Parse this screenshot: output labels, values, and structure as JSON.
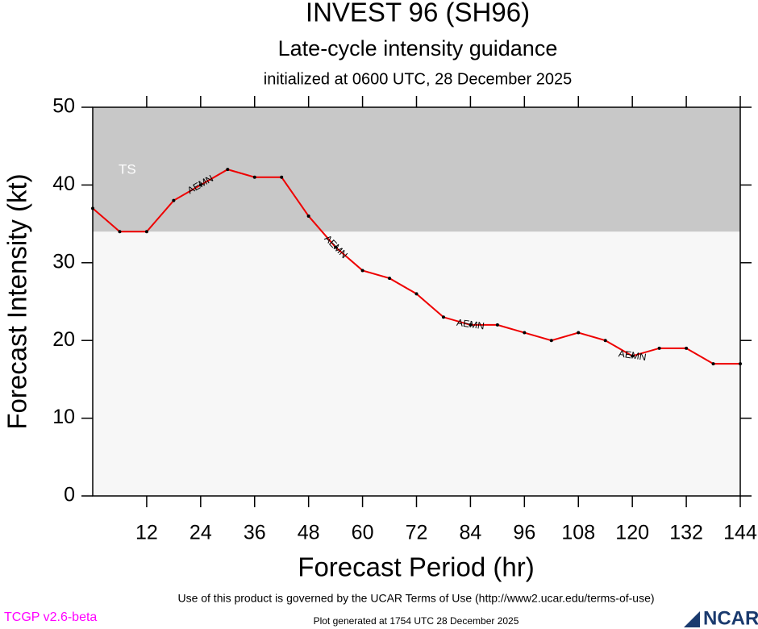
{
  "chart_data": {
    "type": "line",
    "title": "INVEST 96 (SH96)",
    "subtitle": "Late-cycle intensity guidance",
    "initialized": "initialized at 0600 UTC, 28 December 2025",
    "x_label": "Forecast Period (hr)",
    "y_label": "Forecast Intensity (kt)",
    "x": [
      0,
      6,
      12,
      18,
      24,
      30,
      36,
      42,
      48,
      54,
      60,
      66,
      72,
      78,
      84,
      90,
      96,
      102,
      108,
      114,
      120,
      126,
      132,
      138,
      144
    ],
    "series": [
      {
        "name": "AEMN",
        "color": "#ee0000",
        "values": [
          37,
          34,
          34,
          38,
          40,
          42,
          41,
          41,
          36,
          32,
          29,
          28,
          26,
          23,
          22,
          22,
          21,
          20,
          21,
          20,
          18,
          19,
          19,
          17,
          17
        ]
      }
    ],
    "label_at": [
      24,
      54,
      84,
      120
    ],
    "xlim": [
      0,
      144
    ],
    "xticks": [
      12,
      24,
      36,
      48,
      60,
      72,
      84,
      96,
      108,
      120,
      132,
      144
    ],
    "ylim": [
      0,
      50
    ],
    "yticks": [
      0,
      10,
      20,
      30,
      40,
      50
    ],
    "bands": [
      {
        "label": "TS",
        "from": 34,
        "to": 50,
        "color": "#c8c8c8"
      }
    ],
    "background": "#f7f7f7",
    "terms": "Use of this product is governed by the UCAR Terms of Use (http://www2.ucar.edu/terms-of-use)",
    "version": "TCGP v2.6-beta",
    "generated": "Plot generated at 1754 UTC   28 December 2025",
    "logo": "NCAR"
  }
}
